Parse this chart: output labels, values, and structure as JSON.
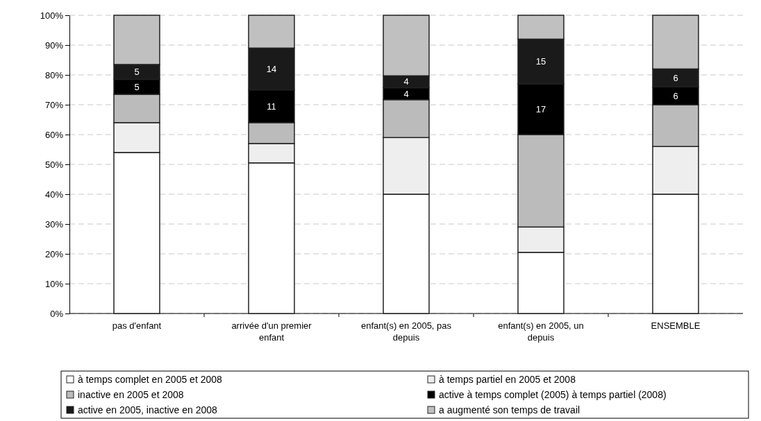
{
  "chart_data": {
    "type": "bar",
    "stacked": true,
    "categories": [
      "pas d'enfant",
      "arrivée d'un premier enfant",
      "enfant(s) en 2005, pas depuis",
      "enfant(s) en 2005, un depuis",
      "ENSEMBLE"
    ],
    "series": [
      {
        "name": "à temps complet en 2005 et 2008",
        "color": "#ffffff",
        "values": [
          54,
          50.5,
          40,
          20.5,
          40
        ]
      },
      {
        "name": "à temps partiel en 2005 et 2008",
        "color": "#eeeeee",
        "values": [
          10,
          6.5,
          19,
          8.5,
          16
        ]
      },
      {
        "name": "inactive en 2005 et 2008",
        "color": "#bbbbbb",
        "values": [
          9.5,
          7,
          12.7,
          31,
          14
        ]
      },
      {
        "name": "active à temps complet (2005) à temps partiel (2008)",
        "color": "#000000",
        "values": [
          5,
          11,
          4,
          17,
          6
        ],
        "value_labels": [
          "5",
          "11",
          "4",
          "17",
          "6"
        ]
      },
      {
        "name": "active en 2005, inactive en 2008",
        "color": "#1a1a1a",
        "values": [
          5,
          14,
          4,
          15,
          6
        ],
        "value_labels": [
          "5",
          "14",
          "4",
          "15",
          "6"
        ]
      },
      {
        "name": "a augmenté son temps de travail",
        "color": "#c0c0c0",
        "values": [
          16.5,
          11,
          20.3,
          8,
          18
        ]
      }
    ],
    "ylim": [
      0,
      100
    ],
    "yticks": [
      {
        "value": 0,
        "label": "0%"
      },
      {
        "value": 10,
        "label": "10%"
      },
      {
        "value": 20,
        "label": "20%"
      },
      {
        "value": 30,
        "label": "30%"
      },
      {
        "value": 40,
        "label": "40%"
      },
      {
        "value": 50,
        "label": "50%"
      },
      {
        "value": 60,
        "label": "60%"
      },
      {
        "value": 70,
        "label": "70%"
      },
      {
        "value": 80,
        "label": "80%"
      },
      {
        "value": 90,
        "label": "90%"
      },
      {
        "value": 100,
        "label": "100%"
      }
    ],
    "grid": "y",
    "legend": "bottom"
  }
}
